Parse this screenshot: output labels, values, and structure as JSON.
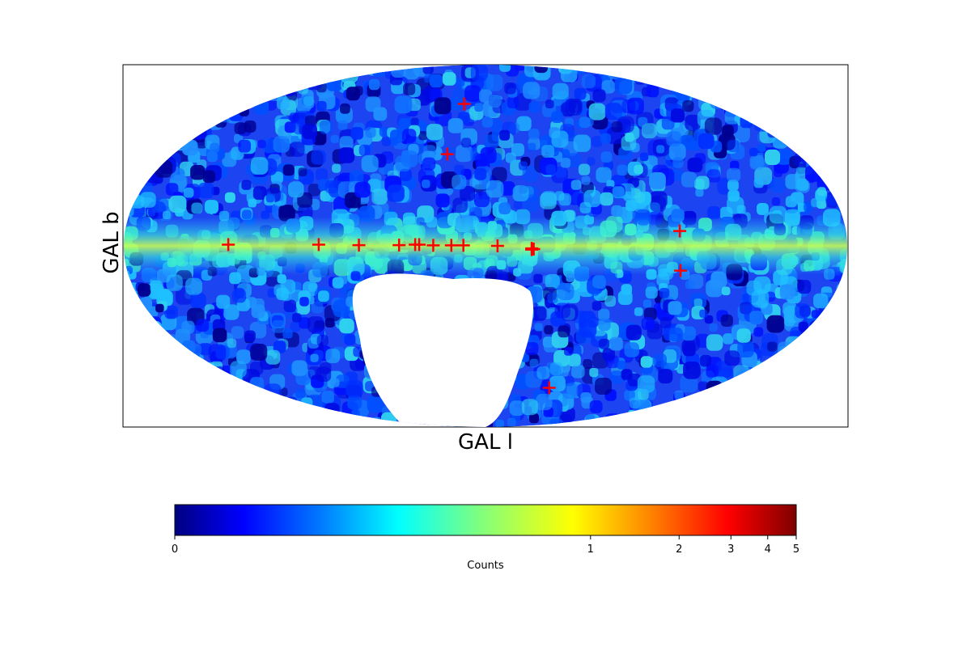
{
  "chart_data": {
    "type": "heatmap",
    "projection": "mollweide",
    "coordinate_system": "galactic",
    "xlabel": "GAL l",
    "ylabel": "GAL b",
    "colormap": "jet",
    "colorbar": {
      "label": "Counts",
      "orientation": "horizontal",
      "placement": "bottom",
      "scale": "nonlinear",
      "range": [
        0,
        5
      ],
      "ticks": [
        {
          "value": 0,
          "label": "0"
        },
        {
          "value": 1,
          "label": "1"
        },
        {
          "value": 2,
          "label": "2"
        },
        {
          "value": 3,
          "label": "3"
        },
        {
          "value": 4,
          "label": "4"
        },
        {
          "value": 5,
          "label": "5"
        }
      ]
    },
    "empty_region": {
      "l_range": [
        300,
        360
      ],
      "b_range": [
        -60,
        -15
      ],
      "note_color": "#ffffff"
    },
    "galactic_plane_band": {
      "b_center": 0,
      "half_width_deg": 6,
      "peak_counts": 0.9
    },
    "sources": [
      {
        "l": 128,
        "b": 0.5
      },
      {
        "l": 83,
        "b": 0.5
      },
      {
        "l": 63,
        "b": 0.3
      },
      {
        "l": 43,
        "b": 0.3
      },
      {
        "l": 35,
        "b": 0.5
      },
      {
        "l": 33,
        "b": 0.5
      },
      {
        "l": 26,
        "b": 0.2
      },
      {
        "l": 17,
        "b": 0.2
      },
      {
        "l": 11,
        "b": 0.2
      },
      {
        "l": 354,
        "b": 0
      },
      {
        "l": 337,
        "b": -1.5
      },
      {
        "l": 336,
        "b": -1.3
      },
      {
        "l": 263,
        "b": 6
      },
      {
        "l": 262,
        "b": -10
      },
      {
        "l": 309,
        "b": -62
      },
      {
        "l": 337,
        "b": -1
      },
      {
        "l": 17,
        "b": 62
      },
      {
        "l": 22,
        "b": 38
      }
    ],
    "colors": {
      "source_marker": "#ff0000",
      "frame": "#000000",
      "jet_stops": [
        "#00007f",
        "#0000ff",
        "#007fff",
        "#00ffff",
        "#7fff7f",
        "#ffff00",
        "#ff7f00",
        "#ff0000",
        "#7f0000"
      ]
    }
  }
}
